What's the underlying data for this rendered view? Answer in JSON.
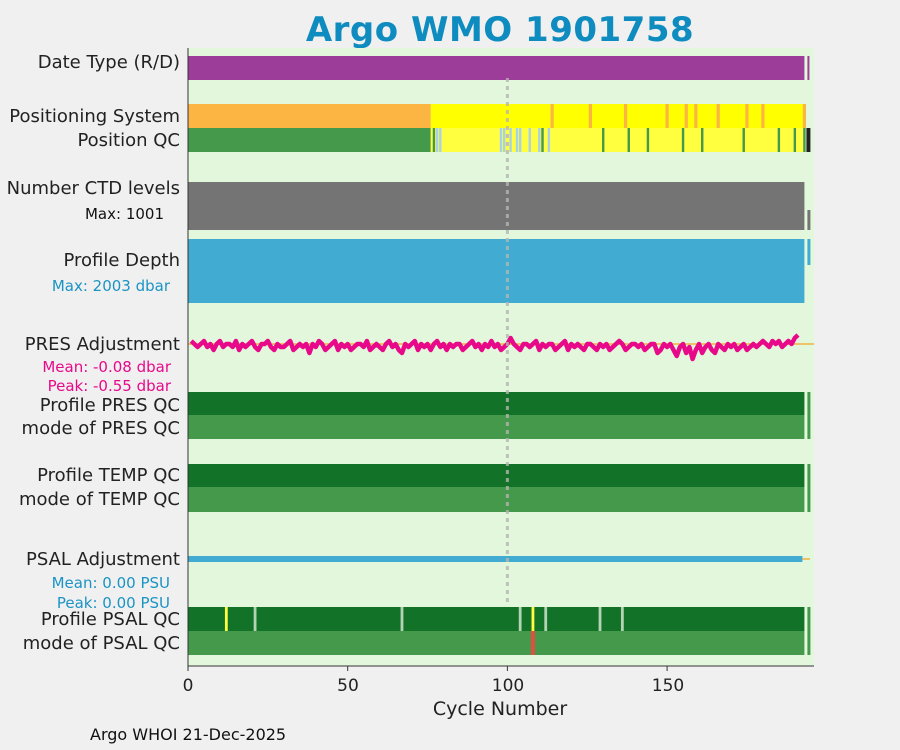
{
  "title": "Argo WMO 1901758",
  "footer": "Argo WHOI 21-Dec-2025",
  "chart_data": {
    "type": "heatmap",
    "title": "Argo WMO 1901758",
    "xlabel": "Cycle Number",
    "xlim": [
      0,
      196
    ],
    "xticks": [
      0,
      50,
      100,
      150
    ],
    "last_cycle": 193,
    "marker_cycle": 100,
    "colors": {
      "background": "#e3f7dc",
      "delayed": "#9b3d99",
      "gps": "#fcb542",
      "argos": "#ffff00",
      "qc_good": "#45994a",
      "qc_light": "#ffff40",
      "qc_blue": "#aad2e6",
      "ctd": "#747474",
      "depth": "#42abd2",
      "pres_adj": "#e8098a",
      "pres_ref": "#f5b041",
      "profile_qc": "#127228",
      "mode_qc": "#45994a",
      "psal_adj": "#42abd2",
      "psal_flag_yellow": "#ffff40",
      "psal_flag_gray": "#b4d2b4",
      "psal_flag_red": "#e05040"
    },
    "rows": {
      "date_type": {
        "label": "Date Type (R/D)",
        "value": "D"
      },
      "positioning_system": {
        "label": "Positioning System",
        "gps_until": 76,
        "gps_cycles": [
          114,
          126,
          137,
          150,
          156,
          159,
          166,
          175,
          180,
          193
        ]
      },
      "position_qc": {
        "label": "Position QC",
        "good_until": 76,
        "blue_cycles": [
          78,
          79,
          98,
          99,
          101,
          103,
          104,
          107,
          110,
          113
        ],
        "green_cycles": [
          77,
          111,
          130,
          138,
          144,
          155,
          161,
          174,
          185,
          190,
          193
        ]
      },
      "ctd_levels": {
        "label": "Number CTD levels",
        "sublabel": "Max: 1001",
        "max": 1001
      },
      "profile_depth": {
        "label": "Profile Depth",
        "sublabel": "Max: 2003 dbar",
        "max_dbar": 2003
      },
      "pres_adjustment": {
        "label": "PRES Adjustment",
        "mean": "Mean: -0.08 dbar",
        "peak": "Peak: -0.55 dbar",
        "values_dbar": [
          0.1,
          0.0,
          -0.1,
          0.0,
          0.1,
          -0.1,
          0.0,
          -0.2,
          0.0,
          0.1,
          -0.1,
          0.0,
          0.0,
          -0.1,
          0.1,
          -0.2,
          0.0,
          -0.1,
          0.0,
          0.1,
          -0.1,
          -0.2,
          0.0,
          0.0,
          0.1,
          -0.1,
          -0.2,
          0.0,
          -0.1,
          -0.1,
          0.0,
          0.1,
          -0.2,
          -0.1,
          0.0,
          -0.1,
          0.0,
          -0.3,
          0.0,
          -0.1,
          0.1,
          0.0,
          -0.2,
          -0.1,
          0.0,
          0.1,
          -0.2,
          0.0,
          -0.1,
          0.0,
          -0.2,
          -0.1,
          0.0,
          0.0,
          -0.1,
          0.1,
          -0.2,
          -0.1,
          0.0,
          -0.1,
          -0.2,
          0.0,
          0.1,
          -0.1,
          0.0,
          -0.2,
          -0.3,
          0.0,
          -0.1,
          0.0,
          0.1,
          -0.2,
          0.0,
          -0.1,
          0.0,
          -0.2,
          0.0,
          0.1,
          -0.1,
          0.0,
          -0.2,
          0.0,
          -0.1,
          0.0,
          0.0,
          -0.2,
          -0.1,
          0.0,
          0.1,
          -0.1,
          0.0,
          -0.2,
          0.0,
          -0.1,
          0.1,
          -0.1,
          0.0,
          -0.2,
          -0.1,
          0.0,
          0.2,
          0.0,
          -0.1,
          -0.2,
          0.0,
          0.0,
          -0.1,
          0.0,
          0.1,
          -0.2,
          0.0,
          -0.1,
          0.0,
          0.0,
          -0.2,
          -0.1,
          0.0,
          0.1,
          -0.2,
          0.0,
          -0.1,
          0.0,
          -0.1,
          -0.2,
          0.0,
          0.0,
          -0.1,
          -0.2,
          0.0,
          -0.1,
          0.0,
          -0.2,
          -0.1,
          0.0,
          0.1,
          0.0,
          -0.2,
          -0.1,
          0.0,
          0.0,
          -0.1,
          0.0,
          -0.2,
          -0.1,
          0.0,
          0.0,
          -0.3,
          -0.2,
          0.0,
          -0.1,
          0.0,
          -0.2,
          -0.4,
          -0.1,
          0.0,
          -0.3,
          -0.1,
          -0.5,
          -0.2,
          0.0,
          -0.3,
          -0.1,
          0.0,
          -0.2,
          -0.3,
          0.0,
          -0.1,
          -0.2,
          0.0,
          -0.1,
          0.0,
          -0.2,
          -0.1,
          0.0,
          -0.2,
          -0.1,
          0.0,
          -0.1,
          0.0,
          0.1,
          0.0,
          -0.1,
          0.1,
          0.0,
          0.1,
          -0.1,
          0.0,
          0.1,
          0.0,
          0.2,
          0.3
        ]
      },
      "profile_pres_qc": {
        "label": "Profile PRES QC"
      },
      "mode_pres_qc": {
        "label": "mode of PRES QC"
      },
      "profile_temp_qc": {
        "label": "Profile TEMP QC"
      },
      "mode_temp_qc": {
        "label": "mode of TEMP QC"
      },
      "psal_adjustment": {
        "label": "PSAL Adjustment",
        "mean": "Mean: 0.00 PSU",
        "peak": "Peak: 0.00 PSU"
      },
      "profile_psal_qc": {
        "label": "Profile PSAL QC",
        "yellow_cycles": [
          12,
          108
        ],
        "gray_cycles": [
          21,
          67,
          104,
          112,
          129,
          136
        ]
      },
      "mode_psal_qc": {
        "label": "mode of PSAL QC",
        "red_cycles": [
          108
        ]
      }
    }
  }
}
